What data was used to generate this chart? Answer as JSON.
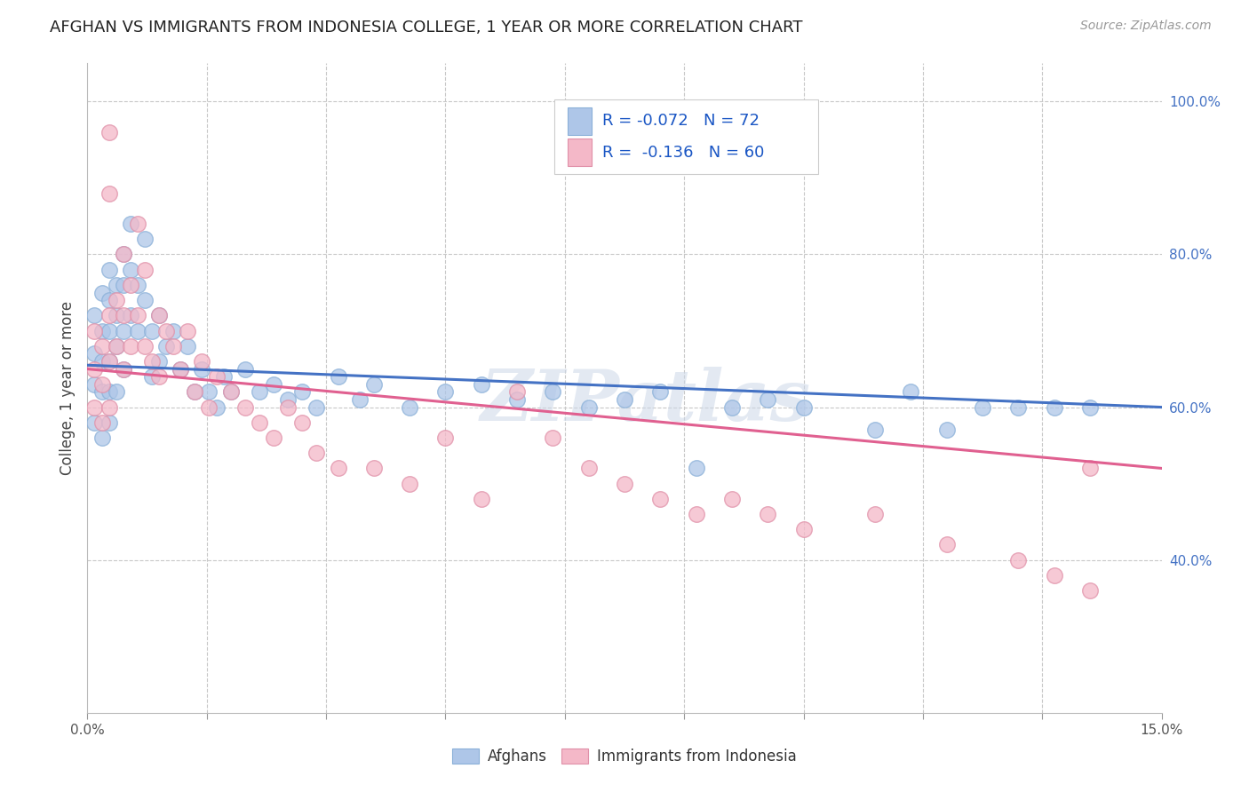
{
  "title": "AFGHAN VS IMMIGRANTS FROM INDONESIA COLLEGE, 1 YEAR OR MORE CORRELATION CHART",
  "source": "Source: ZipAtlas.com",
  "ylabel": "College, 1 year or more",
  "xmin": 0.0,
  "xmax": 0.15,
  "ymin": 0.2,
  "ymax": 1.05,
  "legend_afghans_R": "-0.072",
  "legend_afghans_N": "72",
  "legend_indonesia_R": "-0.136",
  "legend_indonesia_N": "60",
  "afghans_color": "#aec6e8",
  "indonesia_color": "#f4b8c8",
  "line_afghan_color": "#4472c4",
  "line_indonesia_color": "#e06090",
  "watermark": "ZIPatlas",
  "af_line_x0": 0.0,
  "af_line_y0": 0.655,
  "af_line_x1": 0.15,
  "af_line_y1": 0.6,
  "id_line_x0": 0.0,
  "id_line_y0": 0.65,
  "id_line_x1": 0.15,
  "id_line_y1": 0.52,
  "afghans_x": [
    0.001,
    0.001,
    0.001,
    0.001,
    0.002,
    0.002,
    0.002,
    0.002,
    0.002,
    0.003,
    0.003,
    0.003,
    0.003,
    0.003,
    0.003,
    0.004,
    0.004,
    0.004,
    0.004,
    0.005,
    0.005,
    0.005,
    0.005,
    0.006,
    0.006,
    0.006,
    0.007,
    0.007,
    0.008,
    0.008,
    0.009,
    0.009,
    0.01,
    0.01,
    0.011,
    0.012,
    0.013,
    0.014,
    0.015,
    0.016,
    0.017,
    0.018,
    0.019,
    0.02,
    0.022,
    0.024,
    0.026,
    0.028,
    0.03,
    0.032,
    0.035,
    0.038,
    0.04,
    0.045,
    0.05,
    0.055,
    0.06,
    0.065,
    0.07,
    0.075,
    0.08,
    0.085,
    0.09,
    0.095,
    0.1,
    0.11,
    0.115,
    0.12,
    0.125,
    0.13,
    0.135,
    0.14
  ],
  "afghans_y": [
    0.72,
    0.67,
    0.63,
    0.58,
    0.75,
    0.7,
    0.66,
    0.62,
    0.56,
    0.78,
    0.74,
    0.7,
    0.66,
    0.62,
    0.58,
    0.76,
    0.72,
    0.68,
    0.62,
    0.8,
    0.76,
    0.7,
    0.65,
    0.84,
    0.78,
    0.72,
    0.76,
    0.7,
    0.82,
    0.74,
    0.7,
    0.64,
    0.72,
    0.66,
    0.68,
    0.7,
    0.65,
    0.68,
    0.62,
    0.65,
    0.62,
    0.6,
    0.64,
    0.62,
    0.65,
    0.62,
    0.63,
    0.61,
    0.62,
    0.6,
    0.64,
    0.61,
    0.63,
    0.6,
    0.62,
    0.63,
    0.61,
    0.62,
    0.6,
    0.61,
    0.62,
    0.52,
    0.6,
    0.61,
    0.6,
    0.57,
    0.62,
    0.57,
    0.6,
    0.6,
    0.6,
    0.6
  ],
  "indonesia_x": [
    0.001,
    0.001,
    0.001,
    0.002,
    0.002,
    0.002,
    0.003,
    0.003,
    0.003,
    0.003,
    0.004,
    0.004,
    0.005,
    0.005,
    0.005,
    0.006,
    0.006,
    0.007,
    0.007,
    0.008,
    0.008,
    0.009,
    0.01,
    0.01,
    0.011,
    0.012,
    0.013,
    0.014,
    0.015,
    0.016,
    0.017,
    0.018,
    0.02,
    0.022,
    0.024,
    0.026,
    0.028,
    0.03,
    0.032,
    0.035,
    0.04,
    0.045,
    0.05,
    0.055,
    0.06,
    0.065,
    0.07,
    0.075,
    0.08,
    0.085,
    0.09,
    0.095,
    0.1,
    0.11,
    0.12,
    0.13,
    0.135,
    0.14,
    0.003,
    0.14
  ],
  "indonesia_y": [
    0.7,
    0.65,
    0.6,
    0.68,
    0.63,
    0.58,
    0.88,
    0.72,
    0.66,
    0.6,
    0.74,
    0.68,
    0.8,
    0.72,
    0.65,
    0.76,
    0.68,
    0.84,
    0.72,
    0.78,
    0.68,
    0.66,
    0.72,
    0.64,
    0.7,
    0.68,
    0.65,
    0.7,
    0.62,
    0.66,
    0.6,
    0.64,
    0.62,
    0.6,
    0.58,
    0.56,
    0.6,
    0.58,
    0.54,
    0.52,
    0.52,
    0.5,
    0.56,
    0.48,
    0.62,
    0.56,
    0.52,
    0.5,
    0.48,
    0.46,
    0.48,
    0.46,
    0.44,
    0.46,
    0.42,
    0.4,
    0.38,
    0.36,
    0.96,
    0.52
  ]
}
